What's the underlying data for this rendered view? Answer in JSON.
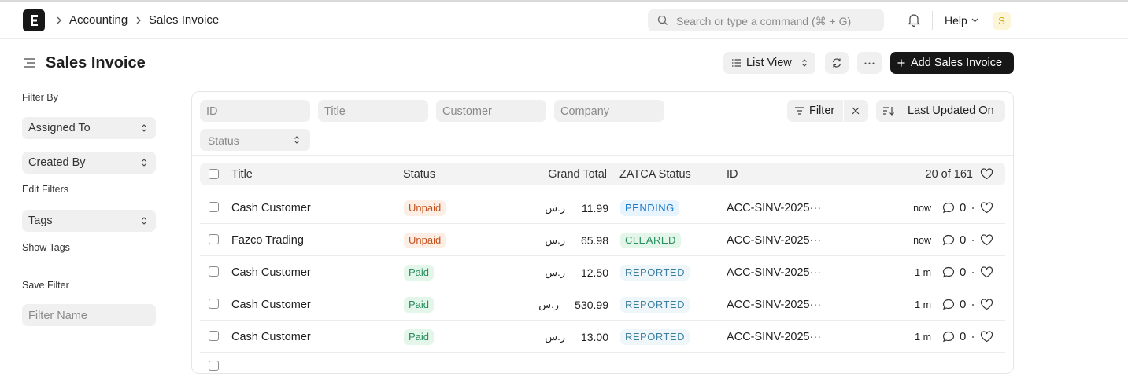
{
  "navbar": {
    "breadcrumbs": [
      "Accounting",
      "Sales Invoice"
    ],
    "search_placeholder": "Search or type a command (⌘ + G)",
    "help": "Help",
    "avatar": "S"
  },
  "header": {
    "title": "Sales Invoice",
    "view_button": "List View",
    "primary_button": "Add Sales Invoice"
  },
  "sidebar": {
    "filter_by": "Filter By",
    "filters": [
      "Assigned To",
      "Created By"
    ],
    "edit_filters": "Edit Filters",
    "tags": "Tags",
    "show_tags": "Show Tags",
    "save_filter": "Save Filter",
    "filter_name_placeholder": "Filter Name"
  },
  "filters": {
    "fields": [
      "ID",
      "Title",
      "Customer",
      "Company"
    ],
    "status": "Status",
    "filter_button": "Filter",
    "sort_button": "Last Updated On"
  },
  "table": {
    "columns": [
      "Title",
      "Status",
      "Grand Total",
      "ZATCA Status",
      "ID"
    ],
    "count": "20 of 161",
    "rows": [
      {
        "title": "Cash Customer",
        "status": "Unpaid",
        "status_color": "#c4511c",
        "status_bg": "#fdeee5",
        "amount": "11.99",
        "currency": "ر.س",
        "zatca": "PENDING",
        "zatca_color": "#1b78c7",
        "zatca_bg": "#e8f4fd",
        "id": "ACC-SINV-2025···",
        "time": "now",
        "comments": 0
      },
      {
        "title": "Fazco Trading",
        "status": "Unpaid",
        "status_color": "#c4511c",
        "status_bg": "#fdeee5",
        "amount": "65.98",
        "currency": "ر.س",
        "zatca": "CLEARED",
        "zatca_color": "#278f5e",
        "zatca_bg": "#e4f5e9",
        "id": "ACC-SINV-2025···",
        "time": "now",
        "comments": 0
      },
      {
        "title": "Cash Customer",
        "status": "Paid",
        "status_color": "#278f5e",
        "status_bg": "#e4f5e9",
        "amount": "12.50",
        "currency": "ر.س",
        "zatca": "REPORTED",
        "zatca_color": "#3d7f9e",
        "zatca_bg": "#eef6fa",
        "id": "ACC-SINV-2025···",
        "time": "1 m",
        "comments": 0
      },
      {
        "title": "Cash Customer",
        "status": "Paid",
        "status_color": "#278f5e",
        "status_bg": "#e4f5e9",
        "amount": "530.99",
        "currency": "ر.س",
        "zatca": "REPORTED",
        "zatca_color": "#3d7f9e",
        "zatca_bg": "#eef6fa",
        "id": "ACC-SINV-2025···",
        "time": "1 m",
        "comments": 0
      },
      {
        "title": "Cash Customer",
        "status": "Paid",
        "status_color": "#278f5e",
        "status_bg": "#e4f5e9",
        "amount": "13.00",
        "currency": "ر.س",
        "zatca": "REPORTED",
        "zatca_color": "#3d7f9e",
        "zatca_bg": "#eef6fa",
        "id": "ACC-SINV-2025···",
        "time": "1 m",
        "comments": 0
      }
    ]
  }
}
